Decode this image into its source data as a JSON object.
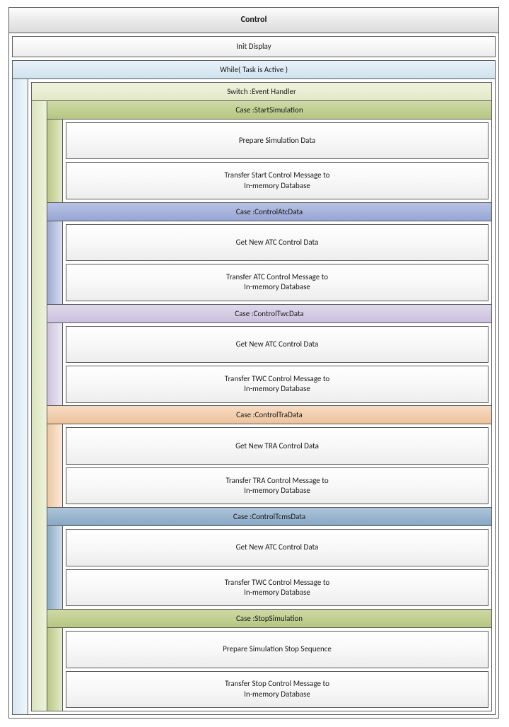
{
  "colors": {
    "border": "#5b5b5b",
    "title_grad": [
      "#fdfdfd",
      "#dcdcdc"
    ],
    "step_grad": [
      "#ffffff",
      "#ededed"
    ],
    "while_head_grad": [
      "#e9f2f9",
      "#cfe2ef"
    ],
    "while_gutter_grad_h": [
      "#d7e7f2",
      "#eef6fb"
    ],
    "switch_head_grad": [
      "#f0f3df",
      "#e3e9c7"
    ],
    "switch_gutter_grad_h": [
      "#dbe3bc",
      "#eef2dc"
    ]
  },
  "title": "Control",
  "init_step": "Init Display",
  "while_label": "While( Task is Active )",
  "switch_label": "Switch :Event Handler",
  "cases": [
    {
      "label": "Case :StartSimulation",
      "head_grad": [
        "#ced9a6",
        "#b7c681"
      ],
      "gutter_grad_h": [
        "#b9c784",
        "#e3e9c9"
      ],
      "steps": [
        "Prepare Simulation Data",
        "Transfer Start Control Message to\nIn-memory Database"
      ]
    },
    {
      "label": "Case :ControlAtcData",
      "head_grad": [
        "#b8c2e3",
        "#96a5d3"
      ],
      "gutter_grad_h": [
        "#9aa8d4",
        "#d9dff0"
      ],
      "steps": [
        "Get New ATC Control Data",
        "Transfer ATC Control Message to\nIn-memory Database"
      ]
    },
    {
      "label": "Case :ControlTwcData",
      "head_grad": [
        "#dfd8eb",
        "#cbc0de"
      ],
      "gutter_grad_h": [
        "#cdc2df",
        "#ece8f3"
      ],
      "steps": [
        "Get New ATC Control Data",
        "Transfer TWC Control Message to\nIn-memory Database"
      ]
    },
    {
      "label": "Case :ControlTraData",
      "head_grad": [
        "#f6dcc4",
        "#eec29b"
      ],
      "gutter_grad_h": [
        "#efc7a2",
        "#f9e9d8"
      ],
      "steps": [
        "Get New TRA Control Data",
        "Transfer TRA Control Message to\nIn-memory Database"
      ]
    },
    {
      "label": "Case :ControlTcmsData",
      "head_grad": [
        "#aec4d9",
        "#86a8c5"
      ],
      "gutter_grad_h": [
        "#8caac6",
        "#cddbe8"
      ],
      "steps": [
        "Get New ATC Control Data",
        "Transfer TWC Control Message to\nIn-memory Database"
      ]
    },
    {
      "label": "Case :StopSimulation",
      "head_grad": [
        "#ced9a6",
        "#b7c681"
      ],
      "gutter_grad_h": [
        "#b9c784",
        "#e3e9c9"
      ],
      "steps": [
        "Prepare Simulation Stop Sequence",
        "Transfer Stop Control Message to\nIn-memory Database"
      ]
    }
  ]
}
